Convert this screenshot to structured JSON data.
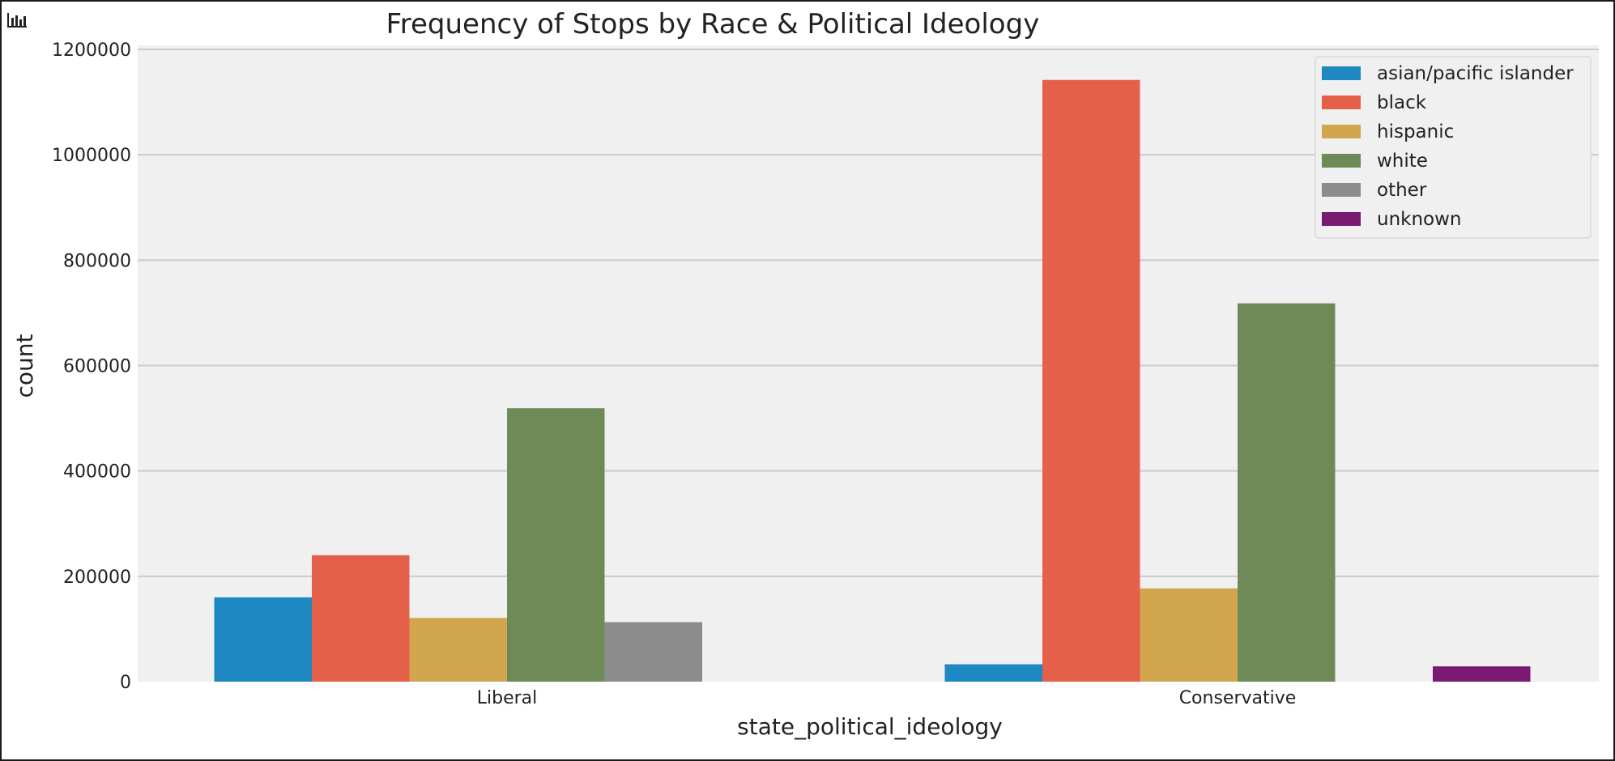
{
  "chart_data": {
    "type": "bar",
    "title": "Frequency of Stops by Race & Political Ideology",
    "xlabel": "state_political_ideology",
    "ylabel": "count",
    "categories": [
      "Liberal",
      "Conservative"
    ],
    "ylim": [
      0,
      1200000
    ],
    "yticks": [
      0,
      200000,
      400000,
      600000,
      800000,
      1000000,
      1200000
    ],
    "ytick_labels": [
      "0",
      "200000",
      "400000",
      "600000",
      "800000",
      "1000000",
      "1200000"
    ],
    "grid": true,
    "legend_position": "top-right",
    "series": [
      {
        "name": "asian/pacific islander",
        "color": "#1d88c2",
        "values": [
          160000,
          33000
        ]
      },
      {
        "name": "black",
        "color": "#e5604a",
        "values": [
          240000,
          1142000
        ]
      },
      {
        "name": "hispanic",
        "color": "#d2a54f",
        "values": [
          121000,
          177000
        ]
      },
      {
        "name": "white",
        "color": "#6e8a57",
        "values": [
          519000,
          718000
        ]
      },
      {
        "name": "other",
        "color": "#8c8c8c",
        "values": [
          113000,
          0
        ]
      },
      {
        "name": "unknown",
        "color": "#7a1a73",
        "values": [
          0,
          29000
        ]
      }
    ]
  },
  "toolbar": {
    "icon": "bar-chart-icon"
  }
}
